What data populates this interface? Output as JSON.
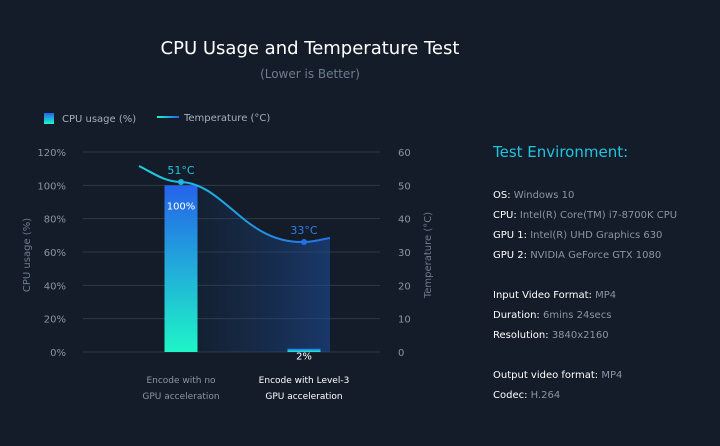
{
  "chart_data": {
    "type": "bar",
    "title": "CPU Usage and Temperature Test",
    "subtitle": "(Lower is Better)",
    "categories": [
      "Encode with no GPU acceleration",
      "Encode with Level-3 GPU acceleration"
    ],
    "category_lines": [
      [
        "Encode with no",
        "GPU acceleration"
      ],
      [
        "Encode with Level-3",
        "GPU acceleration"
      ]
    ],
    "series": [
      {
        "name": "CPU usage (%)",
        "type": "bar",
        "axis": "left",
        "values": [
          100,
          2
        ],
        "labels": [
          "100%",
          "2%"
        ]
      },
      {
        "name": "Temperature (°C)",
        "type": "line",
        "axis": "right",
        "values": [
          51,
          33
        ],
        "labels": [
          "51°C",
          "33°C"
        ]
      }
    ],
    "ylabel": "CPU usage (%)",
    "y2label": "Temperature (°C)",
    "ylim": [
      0,
      120
    ],
    "y2lim": [
      0,
      60
    ],
    "yticks": [
      "0%",
      "20%",
      "40%",
      "60%",
      "80%",
      "100%",
      "120%"
    ],
    "y2ticks": [
      "0",
      "10",
      "20",
      "30",
      "40",
      "50",
      "60"
    ],
    "grid": true,
    "legend": "top-left",
    "colors": {
      "bar_top": "#2563eb",
      "bar_bottom": "#1ef5c8",
      "line": "#1d8fe8",
      "accent": "#21c4e0"
    }
  },
  "environment": {
    "title": "Test Environment:",
    "groups": [
      [
        {
          "k": "OS:",
          "v": "Windows 10"
        },
        {
          "k": "CPU:",
          "v": "Intel(R) Core(TM) i7-8700K CPU"
        },
        {
          "k": "GPU 1:",
          "v": "Intel(R) UHD Graphics 630"
        },
        {
          "k": "GPU 2:",
          "v": "NVIDIA GeForce GTX 1080"
        }
      ],
      [
        {
          "k": "Input Video Format:",
          "v": "MP4"
        },
        {
          "k": "Duration:",
          "v": "6mins 24secs"
        },
        {
          "k": "Resolution:",
          "v": "3840x2160"
        }
      ],
      [
        {
          "k": "Output video format:",
          "v": "MP4"
        },
        {
          "k": "Codec:",
          "v": "H.264"
        }
      ]
    ]
  }
}
